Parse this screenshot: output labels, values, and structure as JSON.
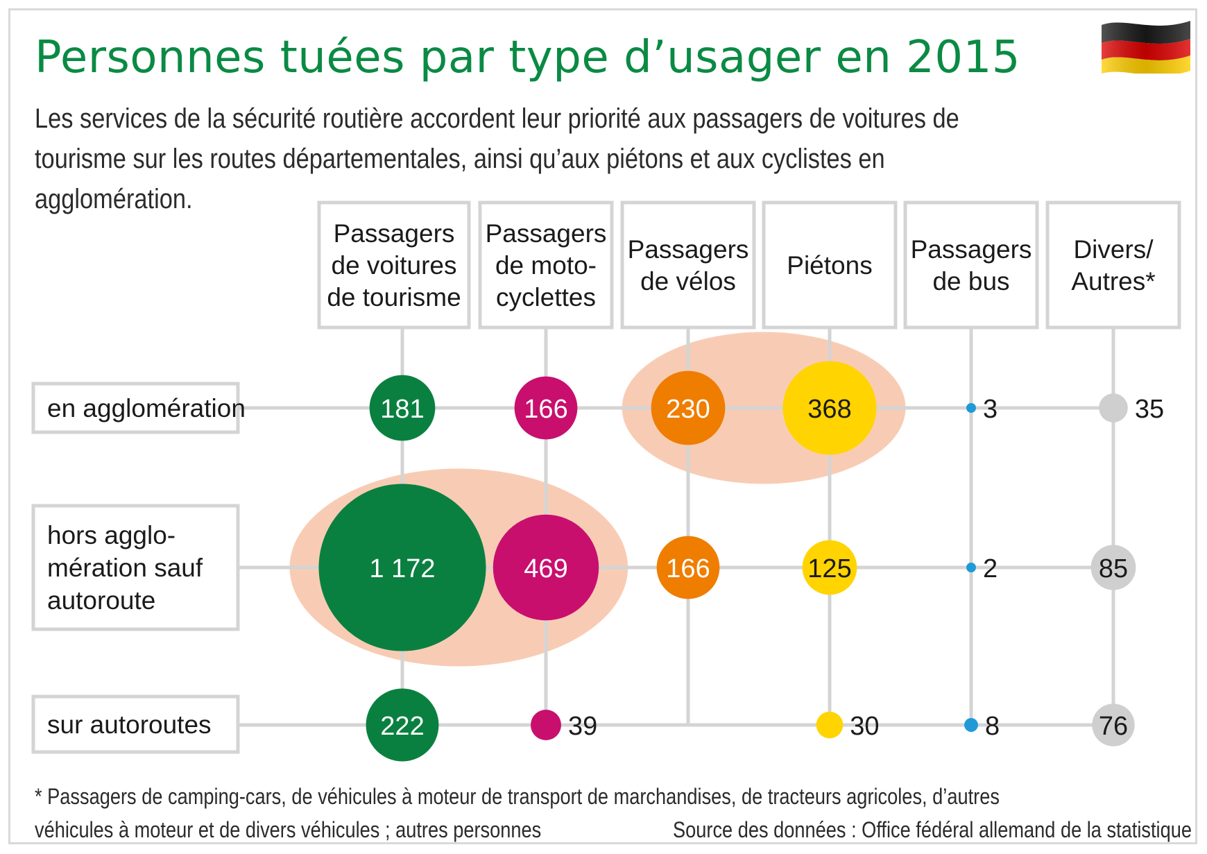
{
  "title": "Personnes tuées par type d’usager en 2015",
  "subtitle": "Les services de la sécurité routière accordent leur priorité aux passagers de voitures de tourisme sur les routes départementales, ainsi qu’aux piétons et aux cyclistes en agglomération.",
  "flag": {
    "name": "germany-flag-icon",
    "colors": [
      "#1a1a1a",
      "#dd0000",
      "#ffce00"
    ]
  },
  "footnote": "* Passagers de camping-cars, de véhicules à moteur de transport de marchandises, de tracteurs agricoles, d’autres véhicules à moteur et de divers véhicules ; autres personnes",
  "source": "Source des données : Office fédéral allemand de la statistique",
  "chart_data": {
    "type": "bubble-matrix",
    "title": "Personnes tuées par type d’usager en 2015",
    "columns": [
      {
        "id": "voitures",
        "label_lines": [
          "Passagers",
          "de voitures",
          "de tourisme"
        ],
        "color": "#0a8040"
      },
      {
        "id": "motos",
        "label_lines": [
          "Passagers",
          "de moto-",
          "cyclettes"
        ],
        "color": "#c80f6e"
      },
      {
        "id": "velos",
        "label_lines": [
          "Passagers",
          "de vélos"
        ],
        "color": "#ef7d00"
      },
      {
        "id": "pietons",
        "label_lines": [
          "Piétons"
        ],
        "color": "#ffd400"
      },
      {
        "id": "bus",
        "label_lines": [
          "Passagers",
          "de bus"
        ],
        "color": "#1f9ad6"
      },
      {
        "id": "divers",
        "label_lines": [
          "Divers/",
          "Autres*"
        ],
        "color": "#cfcfcf"
      }
    ],
    "rows": [
      {
        "id": "agglo",
        "label_lines": [
          "en agglomération"
        ]
      },
      {
        "id": "hors",
        "label_lines": [
          "hors agglo-",
          "mération sauf",
          "autoroute"
        ]
      },
      {
        "id": "autoroutes",
        "label_lines": [
          "sur autoroutes"
        ]
      }
    ],
    "values": [
      {
        "row": "agglo",
        "col": "voitures",
        "value": 181,
        "label": "181"
      },
      {
        "row": "agglo",
        "col": "motos",
        "value": 166,
        "label": "166"
      },
      {
        "row": "agglo",
        "col": "velos",
        "value": 230,
        "label": "230"
      },
      {
        "row": "agglo",
        "col": "pietons",
        "value": 368,
        "label": "368"
      },
      {
        "row": "agglo",
        "col": "bus",
        "value": 3,
        "label": "3"
      },
      {
        "row": "agglo",
        "col": "divers",
        "value": 35,
        "label": "35"
      },
      {
        "row": "hors",
        "col": "voitures",
        "value": 1172,
        "label": "1 172"
      },
      {
        "row": "hors",
        "col": "motos",
        "value": 469,
        "label": "469"
      },
      {
        "row": "hors",
        "col": "velos",
        "value": 166,
        "label": "166"
      },
      {
        "row": "hors",
        "col": "pietons",
        "value": 125,
        "label": "125"
      },
      {
        "row": "hors",
        "col": "bus",
        "value": 2,
        "label": "2"
      },
      {
        "row": "hors",
        "col": "divers",
        "value": 85,
        "label": "85"
      },
      {
        "row": "autoroutes",
        "col": "voitures",
        "value": 222,
        "label": "222"
      },
      {
        "row": "autoroutes",
        "col": "motos",
        "value": 39,
        "label": "39"
      },
      {
        "row": "autoroutes",
        "col": "velos",
        "value": null,
        "label": ""
      },
      {
        "row": "autoroutes",
        "col": "pietons",
        "value": 30,
        "label": "30"
      },
      {
        "row": "autoroutes",
        "col": "bus",
        "value": 8,
        "label": "8"
      },
      {
        "row": "autoroutes",
        "col": "divers",
        "value": 76,
        "label": "76"
      }
    ],
    "highlights": [
      {
        "row": "agglo",
        "cols": [
          "velos",
          "pietons"
        ],
        "color": "#f8ccb4"
      },
      {
        "row": "hors",
        "cols": [
          "voitures",
          "motos"
        ],
        "color": "#f8ccb4"
      }
    ]
  }
}
